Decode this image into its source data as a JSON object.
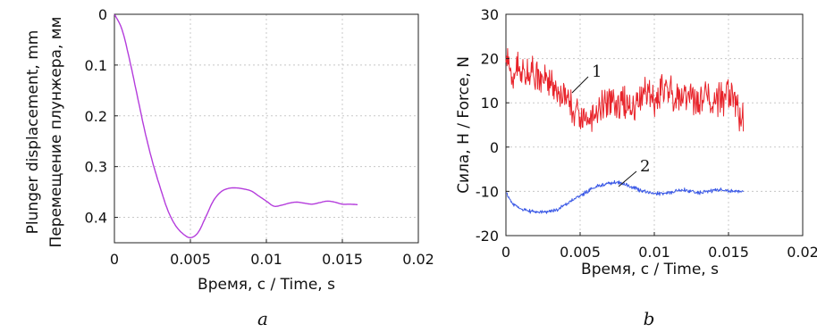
{
  "chart_data": [
    {
      "type": "line",
      "panel_label": "a",
      "xlabel": "Время, с / Time, s",
      "ylabel": [
        "Plunger displacement, mm",
        "Перемещение плунжера, мм"
      ],
      "xlim": [
        0,
        0.02
      ],
      "ylim": [
        0,
        0.45
      ],
      "y_inverted": true,
      "grid": true,
      "x_ticks": [
        0,
        0.005,
        0.01,
        0.015,
        0.02
      ],
      "x_tick_labels": [
        "0",
        "0.005",
        "0.01",
        "0.015",
        "0.02"
      ],
      "y_ticks": [
        0,
        0.1,
        0.2,
        0.3,
        0.4
      ],
      "y_tick_labels": [
        "0",
        "0.1",
        "0.2",
        "0.3",
        "0.4"
      ],
      "series": [
        {
          "color": "#b43cdc",
          "x": [
            0,
            0.0005,
            0.001,
            0.0015,
            0.002,
            0.0025,
            0.003,
            0.0035,
            0.004,
            0.0045,
            0.005,
            0.0055,
            0.006,
            0.0065,
            0.007,
            0.0075,
            0.008,
            0.0085,
            0.009,
            0.0095,
            0.01,
            0.0105,
            0.011,
            0.0115,
            0.012,
            0.0125,
            0.013,
            0.0135,
            0.014,
            0.0145,
            0.015,
            0.0155,
            0.016
          ],
          "y": [
            0,
            0.03,
            0.09,
            0.16,
            0.23,
            0.29,
            0.34,
            0.385,
            0.415,
            0.432,
            0.44,
            0.43,
            0.4,
            0.368,
            0.35,
            0.343,
            0.342,
            0.344,
            0.348,
            0.358,
            0.368,
            0.378,
            0.376,
            0.372,
            0.37,
            0.372,
            0.374,
            0.371,
            0.368,
            0.37,
            0.374,
            0.374,
            0.375
          ]
        }
      ]
    },
    {
      "type": "line",
      "panel_label": "b",
      "xlabel": "Время, с / Time, s",
      "ylabel": "Сила, Н / Force, N",
      "xlim": [
        0,
        0.02
      ],
      "ylim": [
        -20,
        30
      ],
      "grid": true,
      "x_ticks": [
        0,
        0.005,
        0.01,
        0.015,
        0.02
      ],
      "x_tick_labels": [
        "0",
        "0.005",
        "0.01",
        "0.015",
        "0.02"
      ],
      "y_ticks": [
        -20,
        -10,
        0,
        10,
        20,
        30
      ],
      "y_tick_labels": [
        "-20",
        "-10",
        "0",
        "10",
        "20",
        "30"
      ],
      "annotations": [
        "1",
        "2"
      ],
      "series": [
        {
          "label": "1",
          "color": "#e8232a",
          "x": [
            0,
            0.0005,
            0.001,
            0.0015,
            0.002,
            0.0025,
            0.003,
            0.0035,
            0.004,
            0.0045,
            0.005,
            0.0055,
            0.006,
            0.0065,
            0.007,
            0.0075,
            0.008,
            0.0085,
            0.009,
            0.0095,
            0.01,
            0.0105,
            0.011,
            0.0115,
            0.012,
            0.0125,
            0.013,
            0.0135,
            0.014,
            0.0145,
            0.015,
            0.0155,
            0.016
          ],
          "y": [
            19,
            17,
            18,
            16,
            17,
            15,
            14,
            13,
            11,
            9,
            6,
            5,
            8,
            10,
            11,
            9,
            10,
            9,
            11,
            12,
            11,
            13,
            12,
            11,
            12,
            11,
            10,
            11,
            10,
            11,
            12,
            9,
            7
          ],
          "noise_amplitude": 3.5
        },
        {
          "label": "2",
          "color": "#3c5ae6",
          "x": [
            0,
            0.0005,
            0.001,
            0.0015,
            0.002,
            0.0025,
            0.003,
            0.0035,
            0.004,
            0.0045,
            0.005,
            0.0055,
            0.006,
            0.0065,
            0.007,
            0.0075,
            0.008,
            0.0085,
            0.009,
            0.0095,
            0.01,
            0.0105,
            0.011,
            0.0115,
            0.012,
            0.0125,
            0.013,
            0.0135,
            0.014,
            0.0145,
            0.015,
            0.0155,
            0.016
          ],
          "y": [
            -10,
            -13,
            -14,
            -14.5,
            -14.7,
            -14.8,
            -14.5,
            -14,
            -13,
            -12,
            -11,
            -10,
            -9,
            -8.5,
            -8.2,
            -8,
            -8.3,
            -9,
            -9.8,
            -10.2,
            -10.4,
            -10.5,
            -10.3,
            -10,
            -9.6,
            -10,
            -10.3,
            -10.1,
            -9.8,
            -9.5,
            -9.8,
            -10.1,
            -9.9
          ],
          "noise_amplitude": 0.4
        }
      ]
    }
  ]
}
